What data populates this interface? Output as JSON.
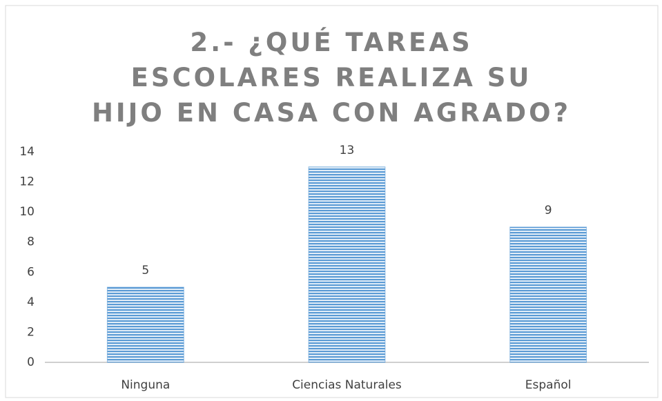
{
  "chart_data": {
    "type": "bar",
    "title": "2.- ¿QUÉ TAREAS ESCOLARES REALIZA SU HIJO EN CASA CON AGRADO?",
    "categories": [
      "Ninguna",
      "Ciencias Naturales",
      "Español"
    ],
    "values": [
      5,
      13,
      9
    ],
    "color": "#5b9bd5",
    "ylim": [
      0,
      14
    ],
    "yticks": [
      0,
      2,
      4,
      6,
      8,
      10,
      12,
      14
    ],
    "grid": false
  }
}
